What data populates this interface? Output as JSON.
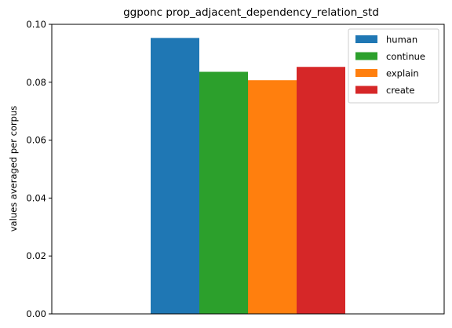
{
  "chart_data": {
    "type": "bar",
    "title": "ggponc prop_adjacent_dependency_relation_std",
    "xlabel": "",
    "ylabel": "values averaged per corpus",
    "ylim": [
      0,
      0.1
    ],
    "yticks": [
      "0.00",
      "0.02",
      "0.04",
      "0.06",
      "0.08",
      "0.10"
    ],
    "grid": false,
    "legend_position": "top-right",
    "series": [
      {
        "name": "human",
        "value": 0.0953,
        "color": "#1f77b4"
      },
      {
        "name": "continue",
        "value": 0.0836,
        "color": "#2ca02c"
      },
      {
        "name": "explain",
        "value": 0.0807,
        "color": "#ff7f0e"
      },
      {
        "name": "create",
        "value": 0.0853,
        "color": "#d62728"
      }
    ]
  }
}
